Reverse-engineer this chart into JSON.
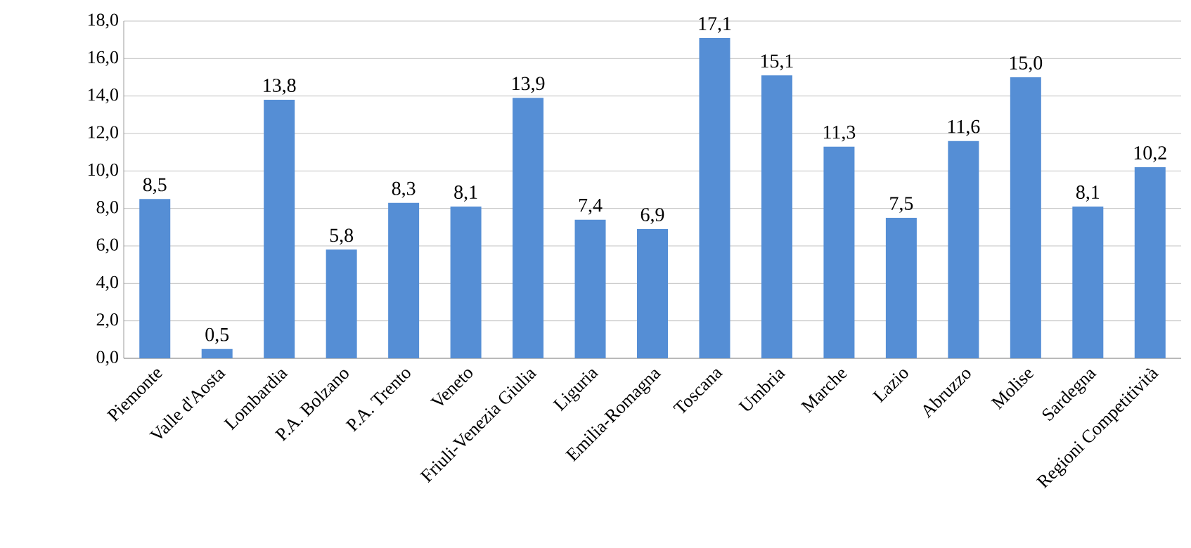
{
  "chart_data": {
    "type": "bar",
    "categories": [
      "Piemonte",
      "Valle d'Aosta",
      "Lombardia",
      "P.A. Bolzano",
      "P.A. Trento",
      "Veneto",
      "Friuli-Venezia Giulia",
      "Liguria",
      "Emilia-Romagna",
      "Toscana",
      "Umbria",
      "Marche",
      "Lazio",
      "Abruzzo",
      "Molise",
      "Sardegna",
      "Regioni Competitività"
    ],
    "values": [
      8.5,
      0.5,
      13.8,
      5.8,
      8.3,
      8.1,
      13.9,
      7.4,
      6.9,
      17.1,
      15.1,
      11.3,
      7.5,
      11.6,
      15.0,
      8.1,
      10.2
    ],
    "value_labels": [
      "8,5",
      "0,5",
      "13,8",
      "5,8",
      "8,3",
      "8,1",
      "13,9",
      "7,4",
      "6,9",
      "17,1",
      "15,1",
      "11,3",
      "7,5",
      "11,6",
      "15,0",
      "8,1",
      "10,2"
    ],
    "color": "#558ed5",
    "ylim": [
      0,
      18
    ],
    "yticks": [
      {
        "value": 0,
        "label": "0,0"
      },
      {
        "value": 2,
        "label": "2,0"
      },
      {
        "value": 4,
        "label": "4,0"
      },
      {
        "value": 6,
        "label": "6,0"
      },
      {
        "value": 8,
        "label": "8,0"
      },
      {
        "value": 10,
        "label": "10,0"
      },
      {
        "value": 12,
        "label": "12,0"
      },
      {
        "value": 14,
        "label": "14,0"
      },
      {
        "value": 16,
        "label": "16,0"
      },
      {
        "value": 18,
        "label": "18,0"
      }
    ],
    "grid": "y"
  }
}
